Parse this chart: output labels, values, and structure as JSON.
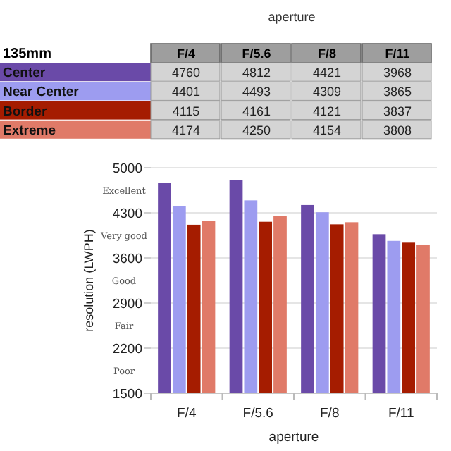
{
  "chart_data": {
    "type": "bar",
    "title": "aperture",
    "legend_title": "135mm",
    "xlabel": "aperture",
    "ylabel": "resolution (LWPH)",
    "categories": [
      "F/4",
      "F/5.6",
      "F/8",
      "F/11"
    ],
    "series": [
      {
        "name": "Center",
        "color": "#6a4aa8",
        "values": [
          4760,
          4812,
          4421,
          3968
        ]
      },
      {
        "name": "Near Center",
        "color": "#9d9cf0",
        "values": [
          4401,
          4493,
          4309,
          3865
        ]
      },
      {
        "name": "Border",
        "color": "#a51c00",
        "values": [
          4115,
          4161,
          4121,
          3837
        ]
      },
      {
        "name": "Extreme",
        "color": "#e07a68",
        "values": [
          4174,
          4250,
          4154,
          3808
        ]
      }
    ],
    "ylim": [
      1500,
      5000
    ],
    "yticks": [
      1500,
      2200,
      2900,
      3600,
      4300,
      5000
    ],
    "grid": "y",
    "legend": "top",
    "data_labels": true,
    "annotations": [
      "Excellent",
      "Very good",
      "Good",
      "Fair",
      "Poor"
    ]
  }
}
